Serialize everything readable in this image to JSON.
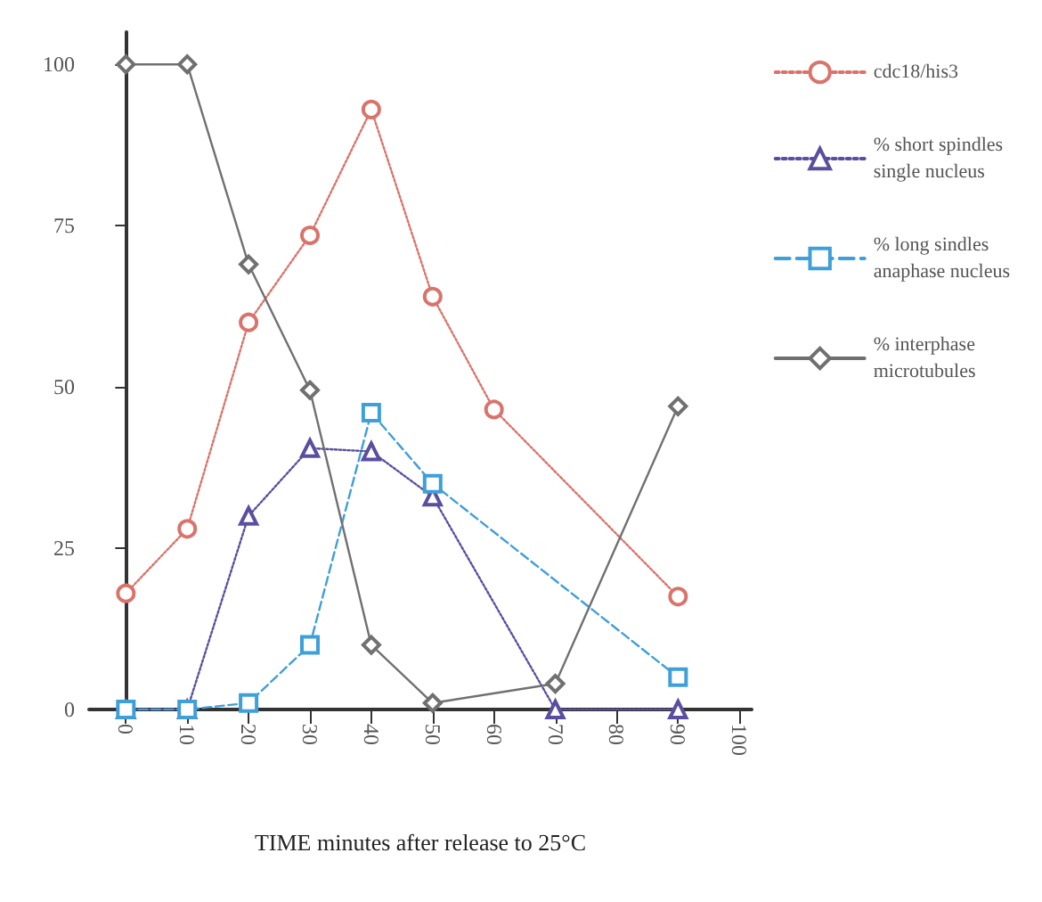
{
  "chart_data": {
    "type": "line",
    "xlabel": "TIME minutes after release to 25°C",
    "xlim": [
      -6,
      102
    ],
    "xticks": [
      0,
      10,
      20,
      30,
      40,
      50,
      60,
      70,
      80,
      90,
      100
    ],
    "ylim": [
      0,
      105
    ],
    "yticks": [
      0,
      25,
      50,
      75,
      100
    ],
    "grid": false,
    "legend": "right",
    "series": [
      {
        "name": "cdc18/his3",
        "color": "#d9736b",
        "marker": "circle",
        "line_style": "dotted",
        "x": [
          0,
          10,
          20,
          30,
          40,
          50,
          60,
          90
        ],
        "values": [
          18,
          28,
          60,
          73.5,
          93,
          64,
          46.5,
          17.5
        ]
      },
      {
        "name": "% short spindles\nsingle nucleus",
        "color": "#5a4ea0",
        "marker": "triangle",
        "line_style": "dotted",
        "x": [
          0,
          10,
          20,
          30,
          40,
          50,
          70,
          90
        ],
        "values": [
          0,
          0,
          30,
          40.5,
          40,
          33,
          0,
          0
        ]
      },
      {
        "name": "% long sindles\nanaphase nucleus",
        "color": "#3f9fd8",
        "marker": "square",
        "line_style": "dashed",
        "x": [
          0,
          10,
          20,
          30,
          40,
          50,
          90
        ],
        "values": [
          0,
          0,
          1,
          10,
          46,
          35,
          5
        ]
      },
      {
        "name": "% interphase\nmicrotubules",
        "color": "#707070",
        "marker": "diamond",
        "line_style": "solid",
        "x": [
          0,
          10,
          20,
          30,
          40,
          50,
          70,
          90
        ],
        "values": [
          100,
          100,
          69,
          49.5,
          10,
          1,
          4,
          47
        ]
      }
    ]
  }
}
